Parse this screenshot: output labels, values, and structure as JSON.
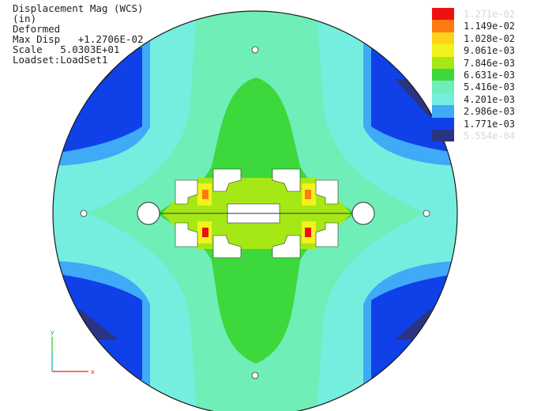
{
  "info": {
    "title": "Displacement Mag (WCS)",
    "units": "(in)",
    "state": "Deformed",
    "max_disp": "Max Disp   +1.2706E-02",
    "scale": "Scale   5.0303E+01",
    "loadset": "Loadset:LoadSet1"
  },
  "legend": [
    {
      "value": "1.271e-02",
      "color": "#ee1111"
    },
    {
      "value": "1.149e-02",
      "color": "#ff7a10"
    },
    {
      "value": "1.028e-02",
      "color": "#ffd21a"
    },
    {
      "value": "9.061e-03",
      "color": "#f2f21c"
    },
    {
      "value": "7.846e-03",
      "color": "#a6e816"
    },
    {
      "value": "6.631e-03",
      "color": "#3cd83c"
    },
    {
      "value": "5.416e-03",
      "color": "#70eeb8"
    },
    {
      "value": "4.201e-03",
      "color": "#75eee0"
    },
    {
      "value": "2.986e-03",
      "color": "#3faaf6"
    },
    {
      "value": "1.771e-03",
      "color": "#1040e8"
    },
    {
      "value": "5.554e-04",
      "color": "#2a3480"
    }
  ],
  "triad": {
    "x_label": "x",
    "y_label": "y",
    "x_color": "#e02020",
    "y_color": "#20c020",
    "z_color": "#20b0e0"
  }
}
